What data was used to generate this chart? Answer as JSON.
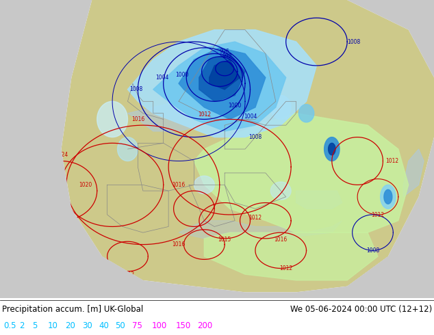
{
  "title_left": "Precipitation accum. [m] UK-Global",
  "title_right": "We 05-06-2024 00:00 UTC (12+12)",
  "legend_labels": [
    "0.5",
    "2",
    "5",
    "10",
    "20",
    "30",
    "40",
    "50",
    "75",
    "100",
    "150",
    "200"
  ],
  "legend_colors_cyan": "#00bfff",
  "legend_colors_magenta": "#ff00ff",
  "legend_split": 8,
  "background_color": "#ffffff",
  "land_color": "#cdc98a",
  "land_gray": "#b8b8b8",
  "sea_color": "#afc8dc",
  "domain_white": "#f0f0f0",
  "precip_light_cyan": "#c8f0ff",
  "precip_mid_cyan": "#80d0f0",
  "precip_blue": "#4090d8",
  "precip_dark_blue": "#1060b0",
  "precip_very_dark": "#003080",
  "precip_light_green": "#c8f0a0",
  "precip_mid_green": "#a0e060",
  "isobar_blue": "#0000aa",
  "isobar_red": "#cc0000",
  "figsize": [
    6.34,
    4.9
  ],
  "dpi": 100,
  "map_xlim": [
    -30,
    55
  ],
  "map_ylim": [
    25,
    75
  ]
}
